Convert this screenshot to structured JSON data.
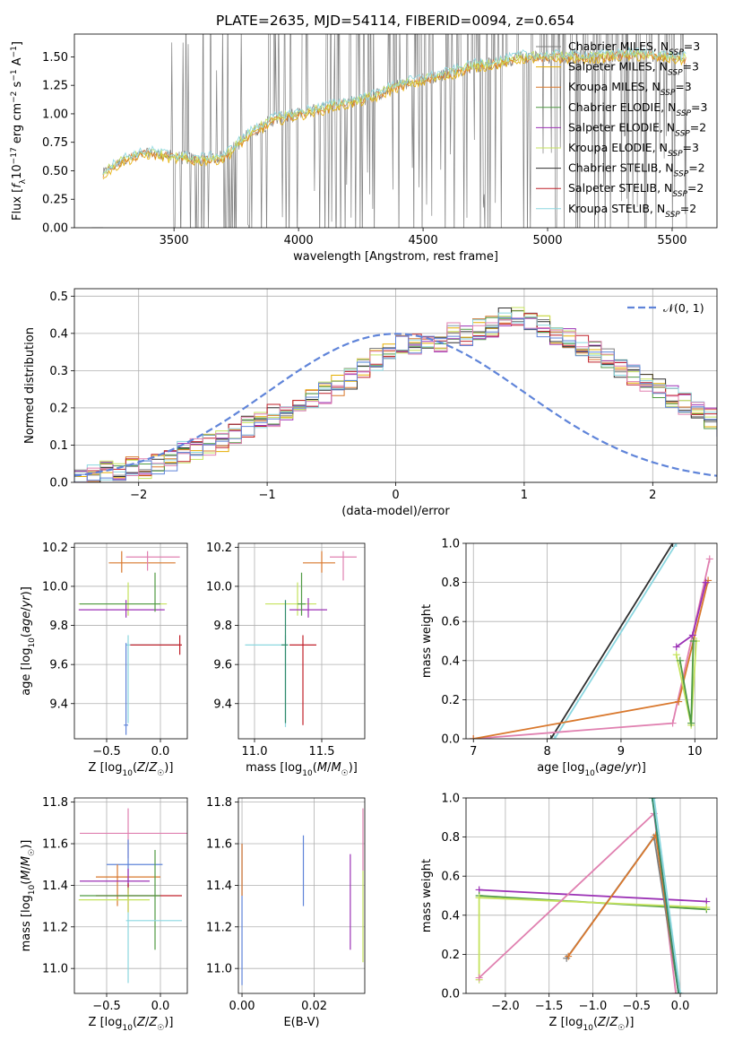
{
  "figure": {
    "title": "PLATE=2635, MJD=54114, FIBERID=0094, z=0.654",
    "colors": {
      "Chabrier MILES": "#7f7f7f",
      "Salpeter MILES": "#e5ad00",
      "Kroupa MILES": "#d9782d",
      "Chabrier ELODIE": "#4f9a44",
      "Salpeter ELODIE": "#9b31b5",
      "Kroupa ELODIE": "#c5e35d",
      "Chabrier STELIB": "#2f2f2f",
      "Salpeter STELIB": "#c0202a",
      "Kroupa STELIB": "#8bd7e0",
      "extra_pink": "#e080b0",
      "extra_blue": "#5f84d9"
    }
  },
  "chart_data": [
    {
      "id": "spectrum",
      "type": "line",
      "xlabel": "wavelength [Angstrom, rest frame]",
      "ylabel": "Flux [f_λ 10^-17 erg cm^-2 s^-1 A^-1]",
      "xlim": [
        3100,
        5680
      ],
      "ylim": [
        0,
        1.7
      ],
      "xticks": [
        3500,
        4000,
        4500,
        5000,
        5500
      ],
      "yticks": [
        0.0,
        0.25,
        0.5,
        0.75,
        1.0,
        1.25,
        1.5
      ],
      "grid": false,
      "legend_position": "top-right",
      "legend": [
        {
          "label": "Chabrier MILES, N",
          "sub": "SSP",
          "tail": "=3"
        },
        {
          "label": "Salpeter MILES, N",
          "sub": "SSP",
          "tail": "=3"
        },
        {
          "label": "Kroupa MILES, N",
          "sub": "SSP",
          "tail": "=3"
        },
        {
          "label": "Chabrier ELODIE, N",
          "sub": "SSP",
          "tail": "=3"
        },
        {
          "label": "Salpeter ELODIE, N",
          "sub": "SSP",
          "tail": "=2"
        },
        {
          "label": "Kroupa ELODIE, N",
          "sub": "SSP",
          "tail": "=3"
        },
        {
          "label": "Chabrier STELIB, N",
          "sub": "SSP",
          "tail": "=2"
        },
        {
          "label": "Salpeter STELIB, N",
          "sub": "SSP",
          "tail": "=2"
        },
        {
          "label": "Kroupa STELIB, N",
          "sub": "SSP",
          "tail": "=2"
        }
      ],
      "data_start": 3215,
      "data_end": 5560,
      "model_anchor_x": [
        3215,
        3300,
        3400,
        3500,
        3600,
        3700,
        3800,
        3900,
        4000,
        4100,
        4200,
        4300,
        4400,
        4500,
        4600,
        4700,
        4800,
        4900,
        5000,
        5100,
        5200,
        5300,
        5400,
        5560
      ],
      "model_anchor_y": [
        0.48,
        0.6,
        0.66,
        0.62,
        0.6,
        0.62,
        0.82,
        0.95,
        1.0,
        1.05,
        1.1,
        1.15,
        1.25,
        1.3,
        1.35,
        1.42,
        1.45,
        1.5,
        1.5,
        1.5,
        1.5,
        1.52,
        1.52,
        1.48
      ]
    },
    {
      "id": "residuals",
      "type": "histogram",
      "xlabel": "(data-model)/error",
      "ylabel": "Normed distribution",
      "xlim": [
        -2.5,
        2.5
      ],
      "ylim": [
        0,
        0.52
      ],
      "xticks": [
        -2,
        -1,
        0,
        1,
        2
      ],
      "yticks": [
        0.0,
        0.1,
        0.2,
        0.3,
        0.4,
        0.5
      ],
      "grid": true,
      "legend_position": "top-right",
      "gauss_label": "𝒩(0, 1)",
      "bin_edges_start": -2.5,
      "bin_width": 0.1,
      "base_heights": [
        0.02,
        0.02,
        0.03,
        0.03,
        0.04,
        0.04,
        0.05,
        0.06,
        0.08,
        0.09,
        0.1,
        0.11,
        0.13,
        0.15,
        0.17,
        0.18,
        0.19,
        0.2,
        0.22,
        0.24,
        0.26,
        0.28,
        0.31,
        0.33,
        0.35,
        0.37,
        0.37,
        0.39,
        0.38,
        0.4,
        0.39,
        0.41,
        0.42,
        0.44,
        0.45,
        0.43,
        0.42,
        0.4,
        0.39,
        0.37,
        0.35,
        0.33,
        0.31,
        0.29,
        0.27,
        0.25,
        0.23,
        0.21,
        0.19,
        0.17,
        0.15,
        0.13,
        0.11,
        0.09,
        0.08,
        0.06,
        0.05,
        0.04,
        0.03,
        0.03,
        0.02,
        0.02,
        0.02,
        0.03,
        0.03,
        0.03,
        0.02,
        0.02,
        0.02,
        0.02
      ],
      "gauss": {
        "mean": 0,
        "sigma": 1
      }
    },
    {
      "id": "age-vs-Z",
      "type": "errorbar",
      "xlabel": "Z [log10(Z/Z☉)]",
      "ylabel": "age [log10(age/yr)]",
      "xlim": [
        -0.8,
        0.25
      ],
      "ylim": [
        9.22,
        10.22
      ],
      "xticks": [
        -0.5,
        0.0
      ],
      "yticks": [
        9.4,
        9.6,
        9.8,
        10.0,
        10.2
      ],
      "grid": true,
      "points": [
        {
          "x": -0.36,
          "y": 10.12,
          "xerr": [
            0.12,
            0.5
          ],
          "yerr": [
            0.05,
            0.06
          ],
          "color": "#d9782d"
        },
        {
          "x": -0.12,
          "y": 10.15,
          "xerr": [
            0.2,
            0.3
          ],
          "yerr": [
            0.07,
            0.03
          ],
          "color": "#e080b0"
        },
        {
          "x": -0.3,
          "y": 9.91,
          "xerr": [
            0.46,
            0.36
          ],
          "yerr": [
            0.06,
            0.11
          ],
          "color": "#c5e35d"
        },
        {
          "x": -0.32,
          "y": 9.88,
          "xerr": [
            0.44,
            0.36
          ],
          "yerr": [
            0.04,
            0.05
          ],
          "color": "#9b31b5"
        },
        {
          "x": -0.05,
          "y": 9.91,
          "xerr": [
            0.7,
            0.05
          ],
          "yerr": [
            0.04,
            0.16
          ],
          "color": "#4f9a44"
        },
        {
          "x": -0.3,
          "y": 9.7,
          "xerr": [
            0.02,
            0.48
          ],
          "yerr": [
            0.4,
            0.05
          ],
          "color": "#8bd7e0"
        },
        {
          "x": 0.18,
          "y": 9.7,
          "xerr": [
            0.46,
            0.02
          ],
          "yerr": [
            0.05,
            0.05
          ],
          "color": "#c0202a"
        },
        {
          "x": -0.32,
          "y": 9.29,
          "xerr": [
            0.02,
            0.02
          ],
          "yerr": [
            0.05,
            0.42
          ],
          "color": "#5f84d9"
        }
      ]
    },
    {
      "id": "age-vs-mass",
      "type": "errorbar",
      "xlabel": "mass [log10(M/M☉)]",
      "ylabel": "",
      "xlim": [
        10.88,
        11.82
      ],
      "ylim": [
        9.22,
        10.22
      ],
      "xticks": [
        11.0,
        11.5
      ],
      "yticks": [
        9.4,
        9.6,
        9.8,
        10.0,
        10.2
      ],
      "grid": true,
      "points": [
        {
          "x": 11.5,
          "y": 10.12,
          "xerr": [
            0.14,
            0.1
          ],
          "yerr": [
            0.05,
            0.06
          ],
          "color": "#d9782d"
        },
        {
          "x": 11.66,
          "y": 10.15,
          "xerr": [
            0.1,
            0.1
          ],
          "yerr": [
            0.12,
            0.03
          ],
          "color": "#e080b0"
        },
        {
          "x": 11.32,
          "y": 9.91,
          "xerr": [
            0.24,
            0.14
          ],
          "yerr": [
            0.06,
            0.11
          ],
          "color": "#c5e35d"
        },
        {
          "x": 11.4,
          "y": 9.88,
          "xerr": [
            0.14,
            0.14
          ],
          "yerr": [
            0.04,
            0.06
          ],
          "color": "#9b31b5"
        },
        {
          "x": 11.35,
          "y": 9.91,
          "xerr": [
            0.03,
            0.03
          ],
          "yerr": [
            0.06,
            0.16
          ],
          "color": "#4f9a44"
        },
        {
          "x": 11.23,
          "y": 9.7,
          "xerr": [
            0.3,
            0.0
          ],
          "yerr": [
            0.42,
            0.05
          ],
          "color": "#8bd7e0"
        },
        {
          "x": 11.36,
          "y": 9.7,
          "xerr": [
            0.1,
            0.1
          ],
          "yerr": [
            0.41,
            0.05
          ],
          "color": "#c0202a"
        },
        {
          "x": 11.23,
          "y": 9.7,
          "xerr": [
            0.03,
            0.02
          ],
          "yerr": [
            0.4,
            0.23
          ],
          "color": "#2f8a6a"
        }
      ]
    },
    {
      "id": "massweight-vs-age",
      "type": "line",
      "xlabel": "age [log10(age/yr)]",
      "ylabel": "mass weight",
      "xlim": [
        6.9,
        10.3
      ],
      "ylim": [
        0,
        1.0
      ],
      "xticks": [
        7,
        8,
        9,
        10
      ],
      "yticks": [
        0.0,
        0.2,
        0.4,
        0.6,
        0.8,
        1.0
      ],
      "grid": true,
      "series": [
        {
          "color": "#2f2f2f",
          "x": [
            8.05,
            9.7
          ],
          "y": [
            0.0,
            1.0
          ]
        },
        {
          "color": "#8bd7e0",
          "x": [
            8.1,
            9.75
          ],
          "y": [
            0.0,
            1.0
          ]
        },
        {
          "color": "#e080b0",
          "x": [
            7.0,
            9.7,
            10.2
          ],
          "y": [
            0.0,
            0.08,
            0.92
          ]
        },
        {
          "color": "#d9782d",
          "x": [
            7.0,
            9.78,
            10.18
          ],
          "y": [
            0.0,
            0.19,
            0.81
          ]
        },
        {
          "color": "#9b31b5",
          "x": [
            9.75,
            9.97,
            10.15
          ],
          "y": [
            0.47,
            0.53,
            0.8
          ]
        },
        {
          "color": "#c5e35d",
          "x": [
            9.75,
            9.95,
            10.02
          ],
          "y": [
            0.43,
            0.07,
            0.5
          ]
        },
        {
          "color": "#4f9a44",
          "x": [
            9.8,
            9.95,
            9.98
          ],
          "y": [
            0.4,
            0.08,
            0.5
          ]
        }
      ]
    },
    {
      "id": "mass-vs-Z",
      "type": "errorbar",
      "xlabel": "Z [log10(Z/Z☉)]",
      "ylabel": "mass [log10(M/M☉)]",
      "xlim": [
        -0.8,
        0.25
      ],
      "ylim": [
        10.88,
        11.82
      ],
      "xticks": [
        -0.5,
        0.0
      ],
      "yticks": [
        11.0,
        11.2,
        11.4,
        11.6,
        11.8
      ],
      "grid": true,
      "points": [
        {
          "x": -0.3,
          "y": 11.65,
          "xerr": [
            0.45,
            0.55
          ],
          "yerr": [
            0.12,
            0.12
          ],
          "color": "#e080b0"
        },
        {
          "x": -0.3,
          "y": 11.5,
          "xerr": [
            0.2,
            0.32
          ],
          "yerr": [
            0.12,
            0.12
          ],
          "color": "#5f84d9"
        },
        {
          "x": -0.4,
          "y": 11.44,
          "xerr": [
            0.2,
            0.4
          ],
          "yerr": [
            0.14,
            0.06
          ],
          "color": "#d9782d"
        },
        {
          "x": -0.3,
          "y": 11.42,
          "xerr": [
            0.45,
            0.2
          ],
          "yerr": [
            0.06,
            0.06
          ],
          "color": "#9b31b5"
        },
        {
          "x": -0.3,
          "y": 11.35,
          "xerr": [
            0.3,
            0.5
          ],
          "yerr": [
            0.08,
            0.06
          ],
          "color": "#c0202a"
        },
        {
          "x": -0.3,
          "y": 11.33,
          "xerr": [
            0.46,
            0.2
          ],
          "yerr": [
            0.06,
            0.06
          ],
          "color": "#c5e35d"
        },
        {
          "x": -0.05,
          "y": 11.35,
          "xerr": [
            0.7,
            0.05
          ],
          "yerr": [
            0.26,
            0.22
          ],
          "color": "#4f9a44"
        },
        {
          "x": -0.3,
          "y": 11.23,
          "xerr": [
            0.02,
            0.5
          ],
          "yerr": [
            0.3,
            0.04
          ],
          "color": "#8bd7e0"
        }
      ]
    },
    {
      "id": "mass-vs-ebv",
      "type": "errorbar",
      "xlabel": "E(B-V)",
      "ylabel": "",
      "xlim": [
        -0.001,
        0.034
      ],
      "ylim": [
        10.88,
        11.82
      ],
      "xticks": [
        0.0,
        0.02
      ],
      "yticks": [
        11.0,
        11.2,
        11.4,
        11.6,
        11.8
      ],
      "grid": true,
      "points": [
        {
          "x": 0.0,
          "y": 11.3,
          "xerr": [
            0,
            0
          ],
          "yerr": [
            0.38,
            0.3
          ],
          "color": "#5f84d9"
        },
        {
          "x": 0.0,
          "y": 11.45,
          "xerr": [
            0,
            0
          ],
          "yerr": [
            0.1,
            0.15
          ],
          "color": "#d9782d"
        },
        {
          "x": 0.017,
          "y": 11.47,
          "xerr": [
            0,
            0
          ],
          "yerr": [
            0.17,
            0.17
          ],
          "color": "#5f84d9"
        },
        {
          "x": 0.03,
          "y": 11.32,
          "xerr": [
            0,
            0
          ],
          "yerr": [
            0.23,
            0.23
          ],
          "color": "#9b31b5"
        },
        {
          "x": 0.0335,
          "y": 11.62,
          "xerr": [
            0,
            0
          ],
          "yerr": [
            0.15,
            0.15
          ],
          "color": "#e080b0"
        },
        {
          "x": 0.0335,
          "y": 11.25,
          "xerr": [
            0,
            0
          ],
          "yerr": [
            0.22,
            0.22
          ],
          "color": "#c5e35d"
        }
      ]
    },
    {
      "id": "massweight-vs-Z",
      "type": "line",
      "xlabel": "Z [log10(Z/Z☉)]",
      "ylabel": "mass weight",
      "xlim": [
        -2.45,
        0.42
      ],
      "ylim": [
        0,
        1.0
      ],
      "xticks": [
        -2.0,
        -1.5,
        -1.0,
        -0.5,
        0.0
      ],
      "yticks": [
        0.0,
        0.2,
        0.4,
        0.6,
        0.8,
        1.0
      ],
      "grid": true,
      "series": [
        {
          "color": "#9b31b5",
          "x": [
            -2.3,
            0.3
          ],
          "y": [
            0.53,
            0.47
          ]
        },
        {
          "color": "#4f9a44",
          "x": [
            -2.3,
            0.3
          ],
          "y": [
            0.5,
            0.43
          ]
        },
        {
          "color": "#c5e35d",
          "x": [
            -2.3,
            0.3,
            -2.3,
            -2.3
          ],
          "y": [
            0.49,
            0.44,
            0.49,
            0.07
          ]
        },
        {
          "color": "#e080b0",
          "x": [
            -2.3,
            -0.3,
            -0.05
          ],
          "y": [
            0.08,
            0.92,
            0.0
          ]
        },
        {
          "color": "#7f7f7f",
          "x": [
            -1.3,
            -0.3,
            -0.02
          ],
          "y": [
            0.18,
            0.8,
            0.0
          ]
        },
        {
          "color": "#d9782d",
          "x": [
            -1.28,
            -0.28,
            -0.02
          ],
          "y": [
            0.19,
            0.81,
            0.0
          ]
        },
        {
          "color": "#8bd7e0",
          "x": [
            -0.3,
            0.0
          ],
          "y": [
            1.0,
            0.0
          ]
        },
        {
          "color": "#2f8a6a",
          "x": [
            -0.32,
            -0.02
          ],
          "y": [
            1.0,
            0.0
          ]
        }
      ]
    }
  ]
}
